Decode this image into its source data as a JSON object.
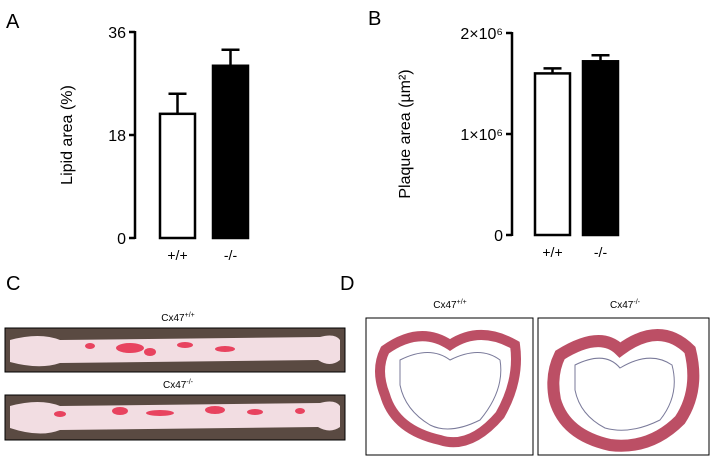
{
  "panel_labels": [
    "A",
    "B",
    "C",
    "D"
  ],
  "images": [
    {
      "caption": "Cx47",
      "caption_sup": "+/+"
    },
    {
      "caption": "Cx47",
      "caption_sup": "-/-"
    },
    {
      "caption": "Cx47",
      "caption_sup": "+/+"
    },
    {
      "caption": "Cx47",
      "caption_sup": "-/-"
    }
  ],
  "chart_data": [
    {
      "type": "bar",
      "ylabel": "Lipid area (%)",
      "categories": [
        "+/+",
        "-/-"
      ],
      "values": [
        21.7,
        30.1
      ],
      "errors": [
        3.5,
        2.8
      ],
      "colors": [
        "#ffffff",
        "#000000"
      ],
      "ylim": [
        0,
        36
      ],
      "yticks": [
        0,
        18,
        36
      ]
    },
    {
      "type": "bar",
      "ylabel": "Plaque area (µm²)",
      "categories": [
        "+/+",
        "-/-"
      ],
      "values": [
        1600000,
        1720000
      ],
      "errors": [
        50000,
        60000
      ],
      "colors": [
        "#ffffff",
        "#000000"
      ],
      "ylim": [
        0,
        2000000
      ],
      "yticks": [
        0,
        {
          "value": 1000000,
          "label": "1×10⁶"
        },
        {
          "value": 2000000,
          "label": "2×10⁶"
        }
      ]
    }
  ]
}
